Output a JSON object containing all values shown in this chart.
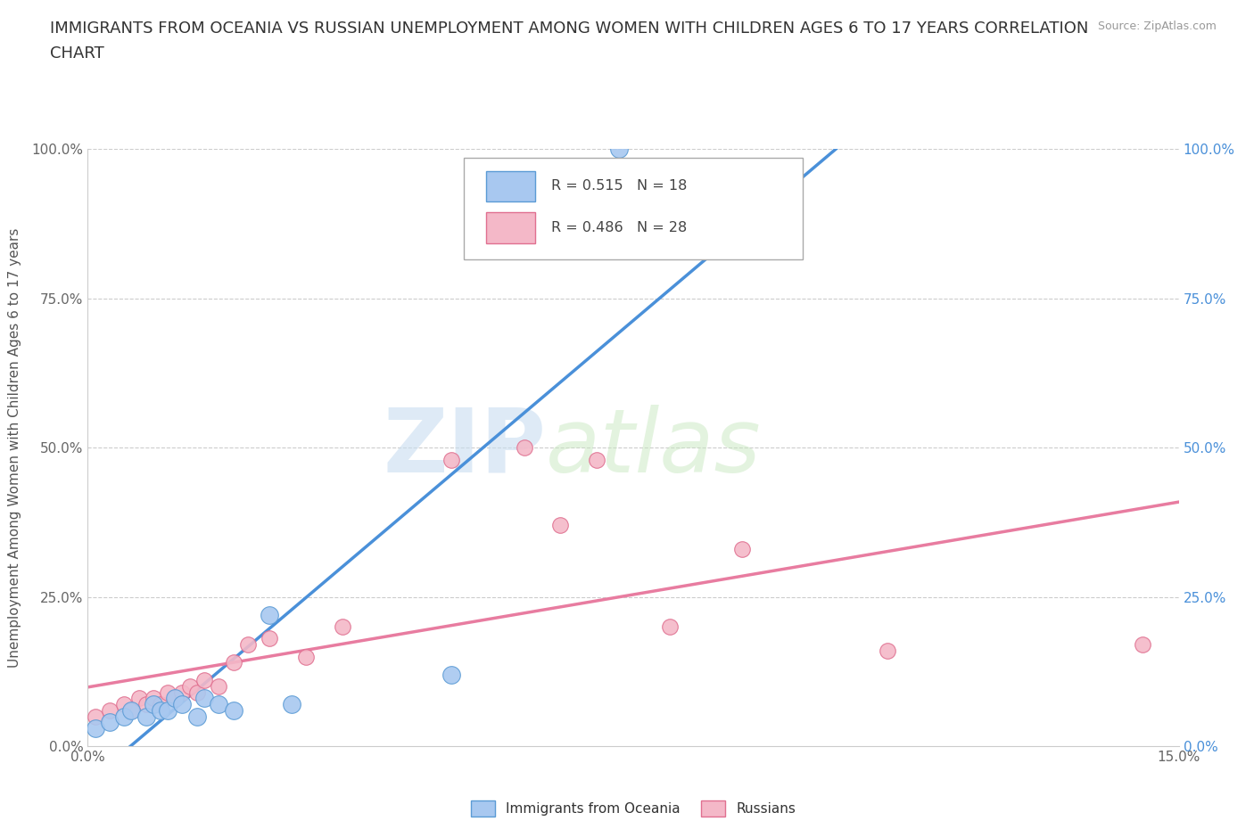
{
  "title_line1": "IMMIGRANTS FROM OCEANIA VS RUSSIAN UNEMPLOYMENT AMONG WOMEN WITH CHILDREN AGES 6 TO 17 YEARS CORRELATION",
  "title_line2": "CHART",
  "source": "Source: ZipAtlas.com",
  "xlabel_bottom": "Immigrants from Oceania",
  "ylabel": "Unemployment Among Women with Children Ages 6 to 17 years",
  "xmin": 0.0,
  "xmax": 0.15,
  "ymin": 0.0,
  "ymax": 1.0,
  "xticks": [
    0.0,
    0.025,
    0.05,
    0.075,
    0.1,
    0.125,
    0.15
  ],
  "xtick_labels": [
    "0.0%",
    "",
    "",
    "",
    "",
    "",
    "15.0%"
  ],
  "yticks": [
    0.0,
    0.25,
    0.5,
    0.75,
    1.0
  ],
  "ytick_labels_left": [
    "0.0%",
    "25.0%",
    "50.0%",
    "75.0%",
    "100.0%"
  ],
  "ytick_labels_right": [
    "0.0%",
    "25.0%",
    "50.0%",
    "75.0%",
    "100.0%"
  ],
  "blue_fill": "#a8c8f0",
  "blue_edge": "#5b9bd5",
  "pink_fill": "#f4b8c8",
  "pink_edge": "#e07090",
  "blue_line_color": "#4a90d9",
  "pink_line_color": "#e87ca0",
  "R_blue": 0.515,
  "N_blue": 18,
  "R_pink": 0.486,
  "N_pink": 28,
  "blue_scatter_x": [
    0.001,
    0.003,
    0.005,
    0.006,
    0.008,
    0.009,
    0.01,
    0.011,
    0.012,
    0.013,
    0.015,
    0.016,
    0.018,
    0.02,
    0.025,
    0.028,
    0.05,
    0.073
  ],
  "blue_scatter_y": [
    0.03,
    0.04,
    0.05,
    0.06,
    0.05,
    0.07,
    0.06,
    0.06,
    0.08,
    0.07,
    0.05,
    0.08,
    0.07,
    0.06,
    0.22,
    0.07,
    0.12,
    1.0
  ],
  "pink_scatter_x": [
    0.001,
    0.003,
    0.005,
    0.006,
    0.007,
    0.008,
    0.009,
    0.01,
    0.011,
    0.012,
    0.013,
    0.014,
    0.015,
    0.016,
    0.018,
    0.02,
    0.022,
    0.025,
    0.03,
    0.035,
    0.05,
    0.06,
    0.065,
    0.07,
    0.08,
    0.09,
    0.11,
    0.145
  ],
  "pink_scatter_y": [
    0.05,
    0.06,
    0.07,
    0.06,
    0.08,
    0.07,
    0.08,
    0.07,
    0.09,
    0.08,
    0.09,
    0.1,
    0.09,
    0.11,
    0.1,
    0.14,
    0.17,
    0.18,
    0.15,
    0.2,
    0.48,
    0.5,
    0.37,
    0.48,
    0.2,
    0.33,
    0.16,
    0.17
  ],
  "marker_size_blue": 200,
  "marker_size_pink": 160,
  "background_color": "#ffffff",
  "grid_color": "#cccccc",
  "watermark_zip": "ZIP",
  "watermark_atlas": "atlas",
  "title_fontsize": 13,
  "label_fontsize": 11,
  "tick_fontsize": 11,
  "right_tick_color": "#4a90d9",
  "left_tick_color": "#666666"
}
